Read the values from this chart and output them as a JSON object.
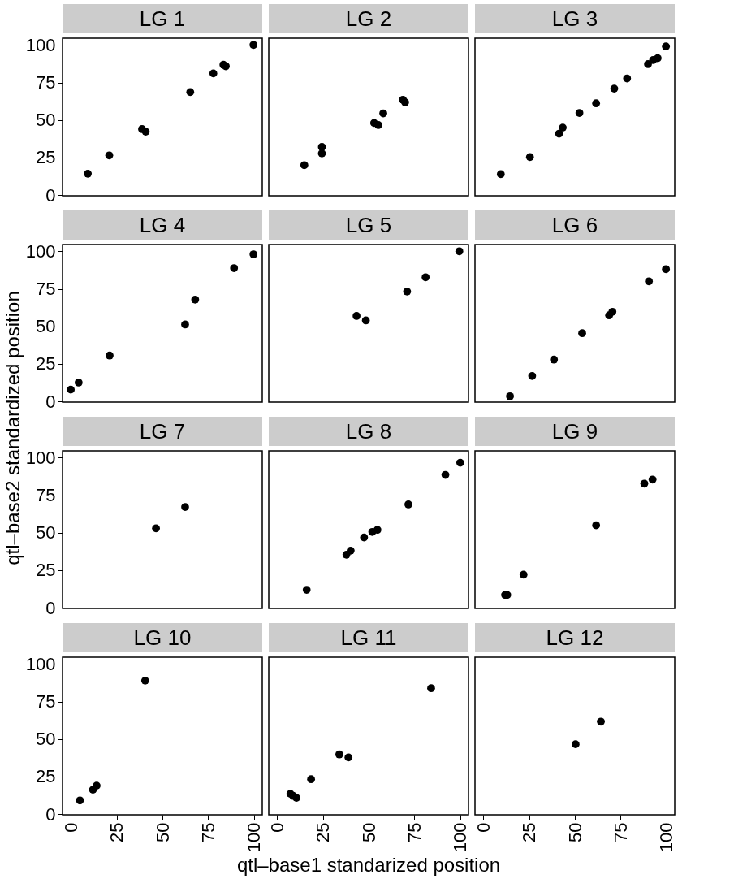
{
  "chart_data": [
    {
      "type": "scatter",
      "title": "LG 1",
      "x": [
        9.3,
        21,
        38.9,
        40.9,
        65.2,
        77.8,
        83.3,
        84.6,
        99.7
      ],
      "values": [
        14.2,
        26.4,
        43.9,
        42.2,
        68.6,
        81,
        86.8,
        85.8,
        100
      ],
      "color": "#000000",
      "marker": "circle",
      "xlim": [
        -4.5,
        104.5
      ],
      "ylim": [
        -0.5,
        104.5
      ],
      "xticks": [
        0,
        25,
        50,
        75,
        100
      ],
      "yticks": [
        0,
        25,
        50,
        75,
        100
      ],
      "tick_labels": "y",
      "grid": false
    },
    {
      "type": "scatter",
      "title": "LG 2",
      "x": [
        14.9,
        24.5,
        24.5,
        53,
        55.3,
        58,
        68.7,
        69.9
      ],
      "values": [
        19.9,
        27.7,
        32,
        48,
        46.6,
        54.4,
        63.5,
        61.8
      ],
      "color": "#000000",
      "marker": "circle",
      "xlim": [
        -4.5,
        104.5
      ],
      "ylim": [
        -0.5,
        104.5
      ],
      "xticks": [
        0,
        25,
        50,
        75,
        100
      ],
      "yticks": [
        0,
        25,
        50,
        75,
        100
      ],
      "tick_labels": false,
      "grid": false
    },
    {
      "type": "scatter",
      "title": "LG 3",
      "x": [
        9.6,
        25.5,
        41.4,
        43.4,
        52.5,
        61.6,
        71.5,
        78.5,
        89.9,
        92.7,
        95.2,
        99.7
      ],
      "values": [
        13.9,
        25.3,
        40.9,
        44.9,
        54.7,
        61.1,
        70.9,
        77.7,
        87.2,
        89.9,
        91.2,
        99
      ],
      "color": "#000000",
      "marker": "circle",
      "xlim": [
        -4.5,
        104.5
      ],
      "ylim": [
        -0.5,
        104.5
      ],
      "xticks": [
        0,
        25,
        50,
        75,
        100
      ],
      "yticks": [
        0,
        25,
        50,
        75,
        100
      ],
      "tick_labels": false,
      "grid": false
    },
    {
      "type": "scatter",
      "title": "LG 4",
      "x": [
        0,
        4.3,
        21.2,
        62.4,
        67.9,
        89.1,
        99.7
      ],
      "values": [
        7.8,
        12.5,
        30.5,
        51.2,
        67.8,
        88.8,
        98
      ],
      "color": "#000000",
      "marker": "circle",
      "xlim": [
        -4.5,
        104.5
      ],
      "ylim": [
        -0.5,
        104.5
      ],
      "xticks": [
        0,
        25,
        50,
        75,
        100
      ],
      "yticks": [
        0,
        25,
        50,
        75,
        100
      ],
      "tick_labels": "y",
      "grid": false
    },
    {
      "type": "scatter",
      "title": "LG 5",
      "x": [
        43.4,
        48.5,
        71,
        81.1,
        99.5
      ],
      "values": [
        56.9,
        53.9,
        73.2,
        82.7,
        100
      ],
      "color": "#000000",
      "marker": "circle",
      "xlim": [
        -4.5,
        104.5
      ],
      "ylim": [
        -0.5,
        104.5
      ],
      "xticks": [
        0,
        25,
        50,
        75,
        100
      ],
      "yticks": [
        0,
        25,
        50,
        75,
        100
      ],
      "tick_labels": false,
      "grid": false
    },
    {
      "type": "scatter",
      "title": "LG 6",
      "x": [
        14.6,
        26.7,
        38.6,
        54,
        68.7,
        70.5,
        90.4,
        99.7
      ],
      "values": [
        3.4,
        16.9,
        27.8,
        45.4,
        57.3,
        59.7,
        80,
        88.1
      ],
      "color": "#000000",
      "marker": "circle",
      "xlim": [
        -4.5,
        104.5
      ],
      "ylim": [
        -0.5,
        104.5
      ],
      "xticks": [
        0,
        25,
        50,
        75,
        100
      ],
      "yticks": [
        0,
        25,
        50,
        75,
        100
      ],
      "tick_labels": false,
      "grid": false
    },
    {
      "type": "scatter",
      "title": "LG 7",
      "ylabel": "qtl–base2 standardized position",
      "x": [
        46.5,
        62.4
      ],
      "values": [
        52.9,
        67.1
      ],
      "color": "#000000",
      "marker": "circle",
      "xlim": [
        -4.5,
        104.5
      ],
      "ylim": [
        -0.5,
        104.5
      ],
      "xticks": [
        0,
        25,
        50,
        75,
        100
      ],
      "yticks": [
        0,
        25,
        50,
        75,
        100
      ],
      "tick_labels": "y",
      "grid": false
    },
    {
      "type": "scatter",
      "title": "LG 8",
      "x": [
        16.2,
        37.9,
        40.2,
        47.5,
        52,
        54.8,
        71.7,
        91.9,
        100
      ],
      "values": [
        11.9,
        35.3,
        38,
        46.8,
        50.5,
        51.9,
        68.8,
        88.5,
        96.6
      ],
      "color": "#000000",
      "marker": "circle",
      "xlim": [
        -4.5,
        104.5
      ],
      "ylim": [
        -0.5,
        104.5
      ],
      "xticks": [
        0,
        25,
        50,
        75,
        100
      ],
      "yticks": [
        0,
        25,
        50,
        75,
        100
      ],
      "tick_labels": false,
      "grid": false
    },
    {
      "type": "scatter",
      "title": "LG 9",
      "x": [
        11.9,
        13.1,
        22,
        61.6,
        87.9,
        92.4
      ],
      "values": [
        8.5,
        8.5,
        22,
        54.9,
        82.7,
        85.4
      ],
      "color": "#000000",
      "marker": "circle",
      "xlim": [
        -4.5,
        104.5
      ],
      "ylim": [
        -0.5,
        104.5
      ],
      "xticks": [
        0,
        25,
        50,
        75,
        100
      ],
      "yticks": [
        0,
        25,
        50,
        75,
        100
      ],
      "tick_labels": false,
      "grid": false
    },
    {
      "type": "scatter",
      "title": "LG 10",
      "x": [
        5,
        12.1,
        14.1,
        40.6
      ],
      "values": [
        9.1,
        16.2,
        18.9,
        88.9
      ],
      "color": "#000000",
      "marker": "circle",
      "xlim": [
        -4.5,
        104.5
      ],
      "ylim": [
        -0.5,
        104.5
      ],
      "xticks": [
        0,
        25,
        50,
        75,
        100
      ],
      "yticks": [
        0,
        25,
        50,
        75,
        100
      ],
      "grid": false
    },
    {
      "type": "scatter",
      "title": "LG 11",
      "xlabel": "qtl–base1 standarized position",
      "x": [
        7.3,
        8.8,
        10.6,
        18.6,
        34,
        39,
        84.1
      ],
      "values": [
        13.5,
        12.1,
        10.8,
        23.2,
        39.7,
        37.7,
        83.8
      ],
      "color": "#000000",
      "marker": "circle",
      "xlim": [
        -4.5,
        104.5
      ],
      "ylim": [
        -0.5,
        104.5
      ],
      "xticks": [
        0,
        25,
        50,
        75,
        100
      ],
      "yticks": [
        0,
        25,
        50,
        75,
        100
      ],
      "tick_labels": "x",
      "grid": false
    },
    {
      "type": "scatter",
      "title": "LG 12",
      "x": [
        50.4,
        64.2
      ],
      "values": [
        46.5,
        61.6
      ],
      "color": "#000000",
      "marker": "circle",
      "xlim": [
        -4.5,
        104.5
      ],
      "ylim": [
        -0.5,
        104.5
      ],
      "xticks": [
        0,
        25,
        50,
        75,
        100
      ],
      "yticks": [
        0,
        25,
        50,
        75,
        100
      ],
      "tick_labels": "x",
      "grid": false
    }
  ]
}
